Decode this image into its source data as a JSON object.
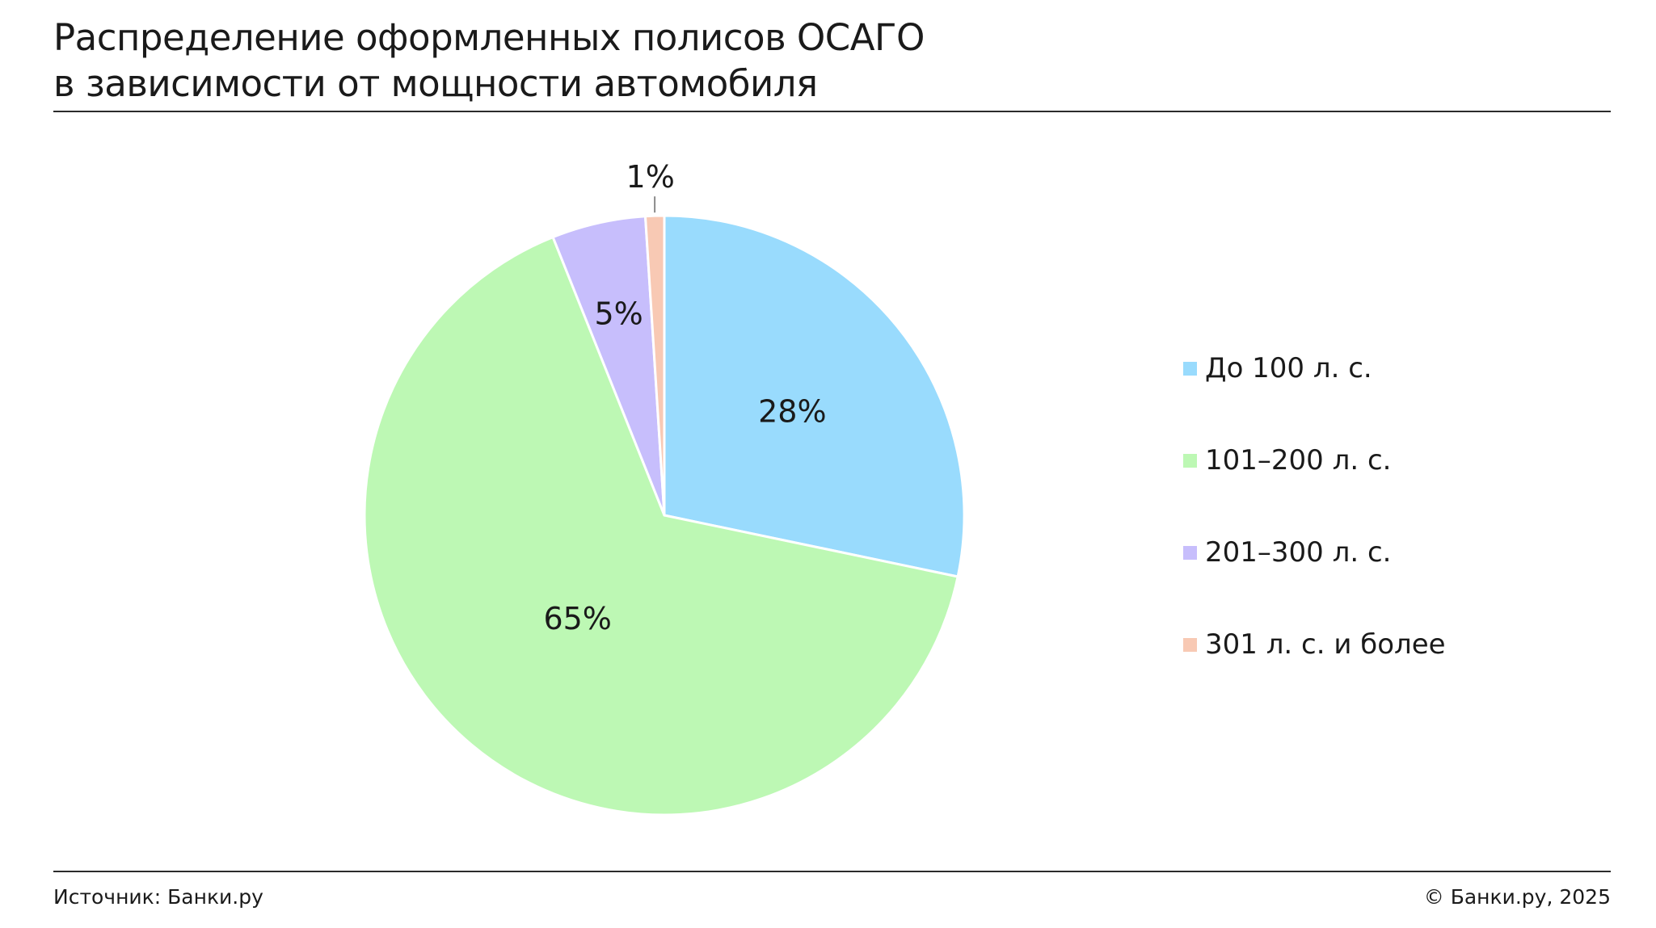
{
  "title_lines": [
    "Распределение оформленных полисов ОСАГО",
    "в зависимости от мощности автомобиля"
  ],
  "chart_data": {
    "type": "pie",
    "title": "Распределение оформленных полисов ОСАГО в зависимости от мощности автомобиля",
    "categories": [
      "До 100 л. с.",
      "101–200 л. с.",
      "201–300 л. с.",
      "301 л. с. и более"
    ],
    "values": [
      28,
      65,
      5,
      1
    ],
    "labels": [
      "28%",
      "65%",
      "5%",
      "1%"
    ],
    "colors": [
      "#99DBFD",
      "#BDF8B4",
      "#C7BEFC",
      "#F8C9B4"
    ],
    "legend_position": "right",
    "start": "12 o'clock, clockwise"
  },
  "footer": {
    "source": "Источник: Банки.ру",
    "copyright": "© Банки.ру, 2025"
  }
}
